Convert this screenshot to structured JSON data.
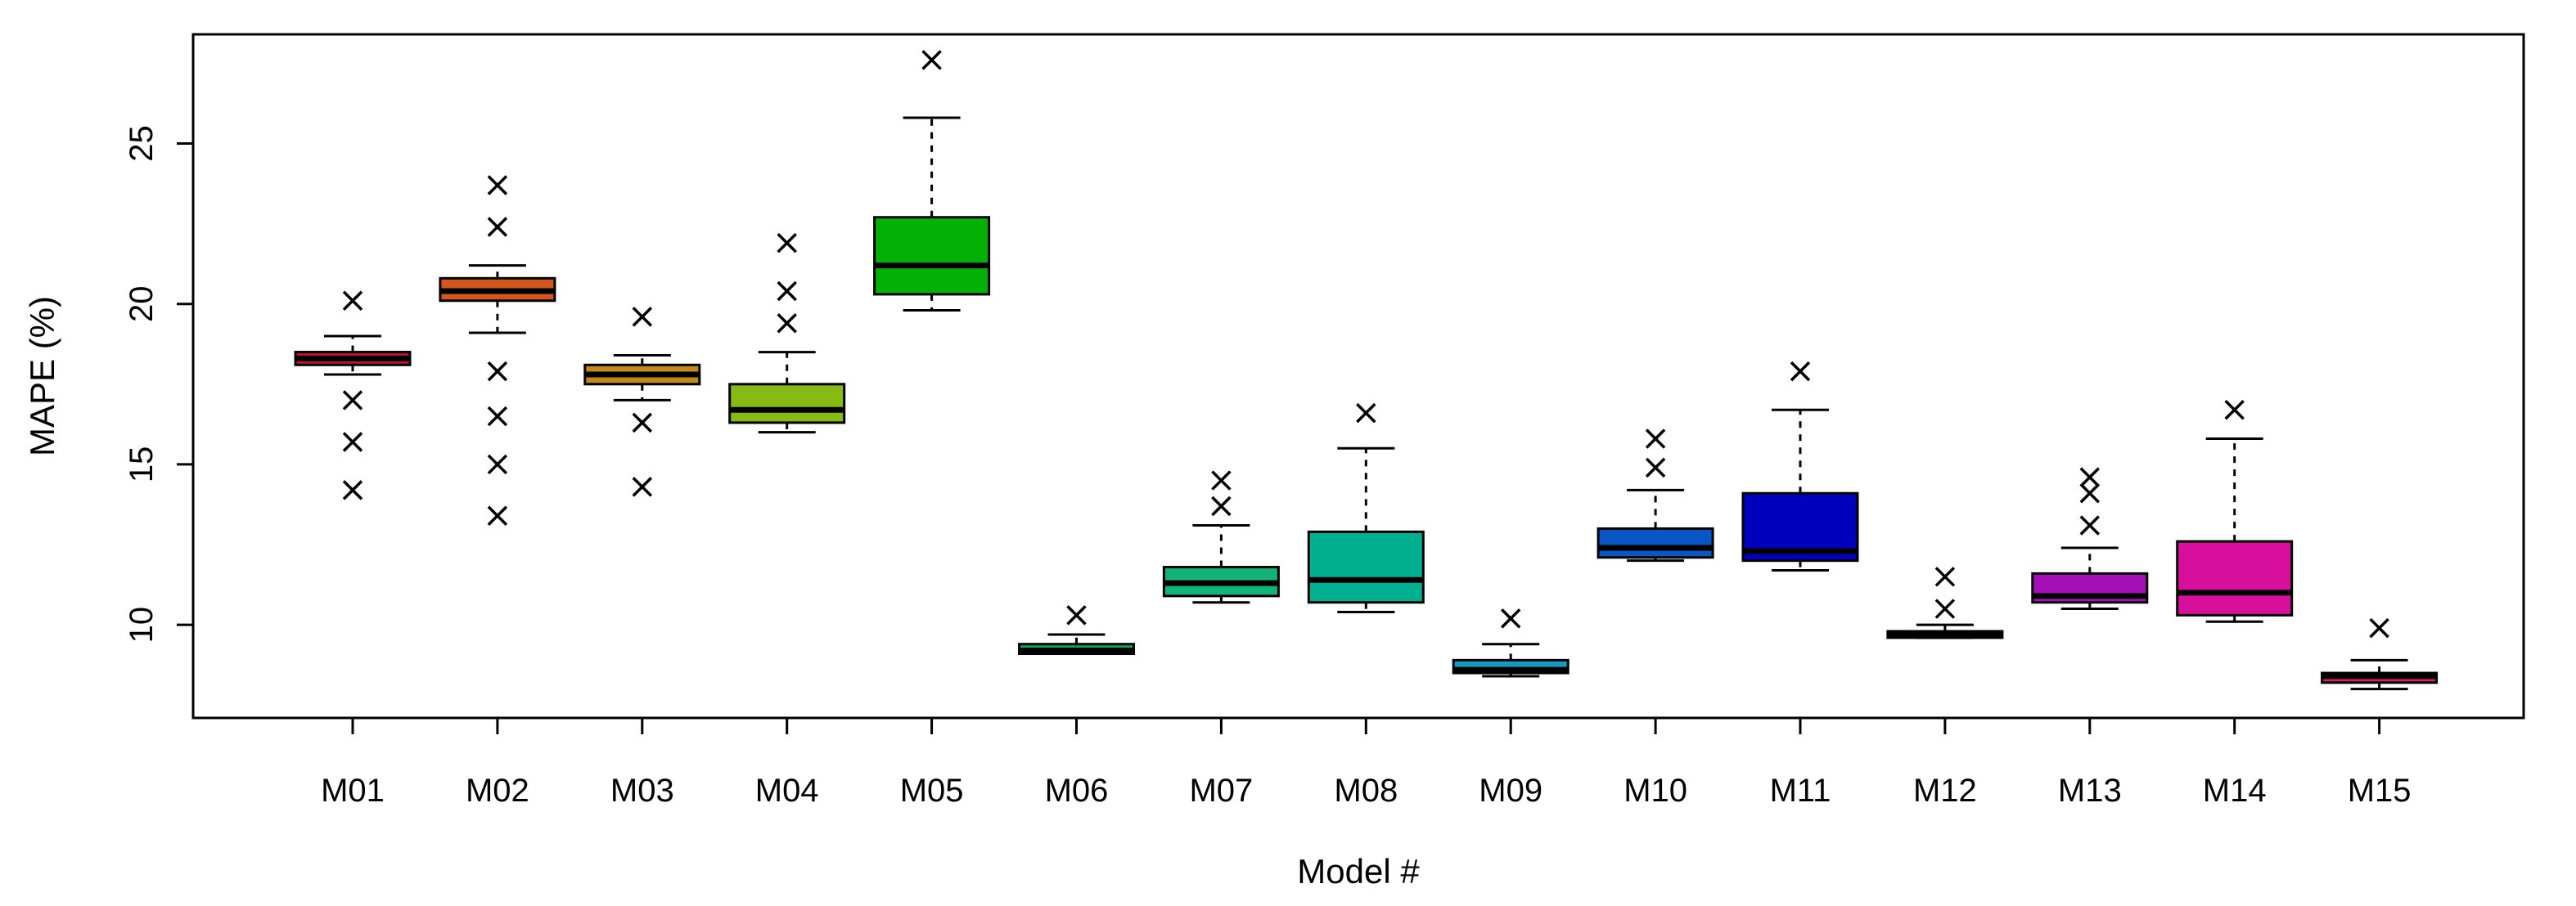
{
  "chart_data": {
    "type": "boxplot",
    "title": "",
    "xlabel": "Model #",
    "ylabel": "MAPE (%)",
    "ylim": [
      7.1,
      28.4
    ],
    "yticks": [
      10,
      15,
      20,
      25
    ],
    "categories": [
      "M01",
      "M02",
      "M03",
      "M04",
      "M05",
      "M06",
      "M07",
      "M08",
      "M09",
      "M10",
      "M11",
      "M12",
      "M13",
      "M14",
      "M15"
    ],
    "boxes": [
      {
        "name": "M01",
        "color": "#c8102e",
        "whisker_low": 17.8,
        "q1": 18.1,
        "median": 18.3,
        "q3": 18.5,
        "whisker_high": 19.0,
        "outliers": [
          20.1,
          17.0,
          15.7,
          14.2
        ]
      },
      {
        "name": "M02",
        "color": "#d3561c",
        "whisker_low": 19.1,
        "q1": 20.1,
        "median": 20.4,
        "q3": 20.8,
        "whisker_high": 21.2,
        "outliers": [
          23.7,
          22.4,
          17.9,
          16.5,
          15.0,
          13.4
        ]
      },
      {
        "name": "M03",
        "color": "#c08a1a",
        "whisker_low": 17.0,
        "q1": 17.5,
        "median": 17.8,
        "q3": 18.1,
        "whisker_high": 18.4,
        "outliers": [
          19.6,
          16.3,
          14.3
        ]
      },
      {
        "name": "M04",
        "color": "#86bb15",
        "whisker_low": 16.0,
        "q1": 16.3,
        "median": 16.7,
        "q3": 17.5,
        "whisker_high": 18.5,
        "outliers": [
          21.9,
          20.4,
          19.4
        ]
      },
      {
        "name": "M05",
        "color": "#03b006",
        "whisker_low": 19.8,
        "q1": 20.3,
        "median": 21.2,
        "q3": 22.7,
        "whisker_high": 25.8,
        "outliers": [
          27.6
        ]
      },
      {
        "name": "M06",
        "color": "#0ea94c",
        "whisker_low": 9.1,
        "q1": 9.1,
        "median": 9.2,
        "q3": 9.4,
        "whisker_high": 9.7,
        "outliers": [
          10.3
        ]
      },
      {
        "name": "M07",
        "color": "#12b378",
        "whisker_low": 10.7,
        "q1": 10.9,
        "median": 11.3,
        "q3": 11.8,
        "whisker_high": 13.1,
        "outliers": [
          14.5,
          13.7
        ]
      },
      {
        "name": "M08",
        "color": "#00b091",
        "whisker_low": 10.4,
        "q1": 10.7,
        "median": 11.4,
        "q3": 12.9,
        "whisker_high": 15.5,
        "outliers": [
          16.6
        ]
      },
      {
        "name": "M09",
        "color": "#159ac2",
        "whisker_low": 8.4,
        "q1": 8.5,
        "median": 8.6,
        "q3": 8.9,
        "whisker_high": 9.4,
        "outliers": [
          10.2
        ]
      },
      {
        "name": "M10",
        "color": "#0a55c4",
        "whisker_low": 12.0,
        "q1": 12.1,
        "median": 12.4,
        "q3": 13.0,
        "whisker_high": 14.2,
        "outliers": [
          15.8,
          14.9
        ]
      },
      {
        "name": "M11",
        "color": "#0000bd",
        "whisker_low": 11.7,
        "q1": 12.0,
        "median": 12.3,
        "q3": 14.1,
        "whisker_high": 16.7,
        "outliers": [
          17.9
        ]
      },
      {
        "name": "M12",
        "color": "#5a13bd",
        "whisker_low": 9.6,
        "q1": 9.6,
        "median": 9.7,
        "q3": 9.8,
        "whisker_high": 10.0,
        "outliers": [
          11.5,
          10.5
        ]
      },
      {
        "name": "M13",
        "color": "#a50fb8",
        "whisker_low": 10.5,
        "q1": 10.7,
        "median": 10.9,
        "q3": 11.6,
        "whisker_high": 12.4,
        "outliers": [
          14.6,
          14.1,
          13.1
        ]
      },
      {
        "name": "M14",
        "color": "#d80e9c",
        "whisker_low": 10.1,
        "q1": 10.3,
        "median": 11.0,
        "q3": 12.6,
        "whisker_high": 15.8,
        "outliers": [
          16.7
        ]
      },
      {
        "name": "M15",
        "color": "#d81f59",
        "whisker_low": 8.0,
        "q1": 8.2,
        "median": 8.4,
        "q3": 8.5,
        "whisker_high": 8.9,
        "outliers": [
          9.9
        ]
      }
    ]
  }
}
